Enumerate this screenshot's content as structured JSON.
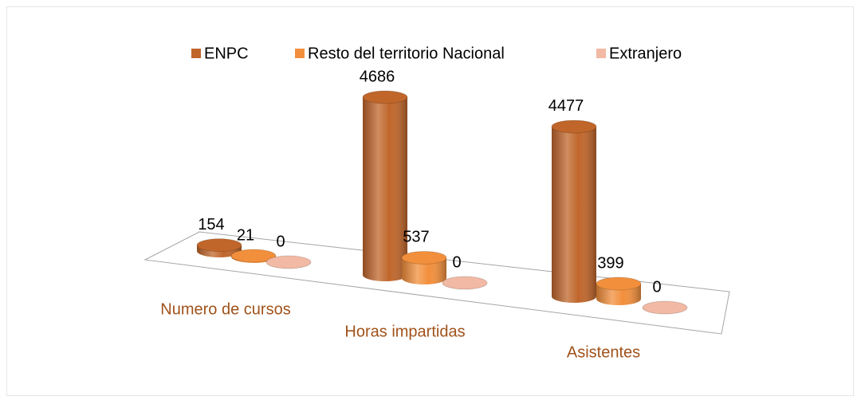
{
  "chart_data": {
    "type": "bar3d",
    "categories": [
      "Numero de cursos",
      "Horas impartidas",
      "Asistentes"
    ],
    "series": [
      {
        "name": "ENPC",
        "color": "#c0662b",
        "values": [
          154,
          4686,
          4477
        ]
      },
      {
        "name": "Resto del territorio Nacional",
        "color": "#f28f3c",
        "values": [
          21,
          537,
          399
        ]
      },
      {
        "name": "Extranjero",
        "color": "#f2b9a4",
        "values": [
          0,
          0,
          0
        ]
      }
    ],
    "legend": "top"
  }
}
